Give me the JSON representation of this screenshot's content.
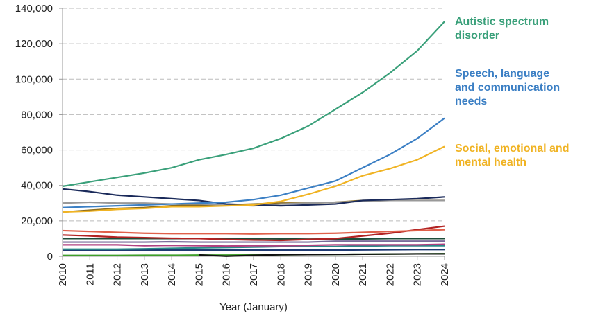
{
  "chart_data": {
    "type": "line",
    "x_label": "Year (January)",
    "x": [
      2010,
      2011,
      2012,
      2013,
      2014,
      2015,
      2016,
      2017,
      2018,
      2019,
      2020,
      2021,
      2022,
      2023,
      2024
    ],
    "xlim": [
      2010,
      2024
    ],
    "xticks": [
      2010,
      2011,
      2012,
      2013,
      2014,
      2015,
      2016,
      2017,
      2018,
      2019,
      2020,
      2021,
      2022,
      2023,
      2024
    ],
    "ylim": [
      0,
      140000
    ],
    "yticks": [
      0,
      {
        "value": 20000,
        "label": "20,000"
      },
      {
        "value": 40000,
        "label": "40,000"
      },
      {
        "value": 60000,
        "label": "60,000"
      },
      {
        "value": 80000,
        "label": "80,000"
      },
      {
        "value": 100000,
        "label": "100,000"
      },
      {
        "value": 120000,
        "label": "120,000"
      },
      {
        "value": 140000,
        "label": "140,000"
      }
    ],
    "grid": true,
    "series": [
      {
        "color": "#3e9e2a",
        "values": [
          500,
          500,
          500,
          600,
          600,
          700,
          700,
          800,
          900,
          1000,
          1100,
          1200,
          1300,
          1400,
          1500
        ]
      },
      {
        "color": "#111111",
        "values": [
          null,
          null,
          null,
          null,
          null,
          800,
          100,
          600,
          900,
          1000,
          1100,
          1200,
          1300,
          1400,
          1400
        ]
      },
      {
        "color": "#1f3b73",
        "values": [
          3500,
          3500,
          3500,
          3500,
          3500,
          3500,
          3500,
          3500,
          3500,
          3500,
          3500,
          3600,
          3700,
          3800,
          3800
        ]
      },
      {
        "color": "#2a8a8a",
        "values": [
          4000,
          4000,
          4000,
          4200,
          4500,
          4800,
          5000,
          5200,
          5500,
          5500,
          5500,
          5800,
          6000,
          6000,
          6000
        ]
      },
      {
        "color": "#b04080",
        "values": [
          6500,
          6500,
          6500,
          6000,
          6200,
          6000,
          5800,
          6000,
          6000,
          6200,
          6500,
          6500,
          6500,
          6500,
          6800
        ]
      },
      {
        "color": "#7a6a9a",
        "values": [
          8000,
          8000,
          8000,
          8000,
          8200,
          8000,
          8000,
          8000,
          8000,
          8000,
          8500,
          8500,
          8500,
          8500,
          8500
        ]
      },
      {
        "color": "#1e4d3a",
        "values": [
          10000,
          10000,
          10000,
          10000,
          10000,
          10000,
          10000,
          10000,
          9800,
          9700,
          9800,
          9800,
          10000,
          10000,
          10000
        ]
      },
      {
        "color": "#b22222",
        "values": [
          12000,
          11500,
          10800,
          10500,
          10200,
          10000,
          9500,
          9200,
          9000,
          9500,
          10000,
          11500,
          13000,
          15000,
          17000
        ]
      },
      {
        "color": "#e0604a",
        "values": [
          14500,
          14000,
          13500,
          13000,
          12800,
          12800,
          12800,
          12600,
          12800,
          12800,
          13000,
          13500,
          14000,
          14500,
          15000
        ]
      },
      {
        "color": "#8c6d1f",
        "values": [
          25000,
          26000,
          27000,
          27500,
          28500,
          29000,
          29000,
          29500,
          30000,
          30000,
          30500,
          31500,
          31500,
          31500,
          31500
        ]
      },
      {
        "color": "#999999",
        "values": [
          30000,
          30500,
          30000,
          30000,
          29500,
          29500,
          29000,
          28500,
          29500,
          30000,
          30500,
          31000,
          31500,
          31500,
          31500
        ]
      },
      {
        "color": "#1a2a5a",
        "values": [
          38000,
          36500,
          34500,
          33500,
          32500,
          31500,
          29500,
          29000,
          28500,
          29000,
          29500,
          31500,
          32000,
          32500,
          33500
        ]
      },
      {
        "name": "Social, emotional and mental health",
        "color": "#f0b323",
        "values": [
          25000,
          25500,
          26500,
          27000,
          28000,
          28000,
          28500,
          29000,
          31000,
          35000,
          39500,
          45500,
          49500,
          54500,
          62000
        ]
      },
      {
        "name": "Speech, language and communication needs",
        "color": "#3b7fc4",
        "values": [
          27500,
          28000,
          28500,
          29000,
          29500,
          30000,
          30500,
          32000,
          34500,
          38500,
          42500,
          50000,
          57500,
          66500,
          78000
        ]
      },
      {
        "name": "Autistic spectrum disorder",
        "color": "#3aa07a",
        "values": [
          39500,
          42000,
          44500,
          47000,
          50000,
          54500,
          57500,
          61000,
          66500,
          73500,
          83000,
          92500,
          103500,
          116000,
          132500
        ]
      }
    ]
  }
}
